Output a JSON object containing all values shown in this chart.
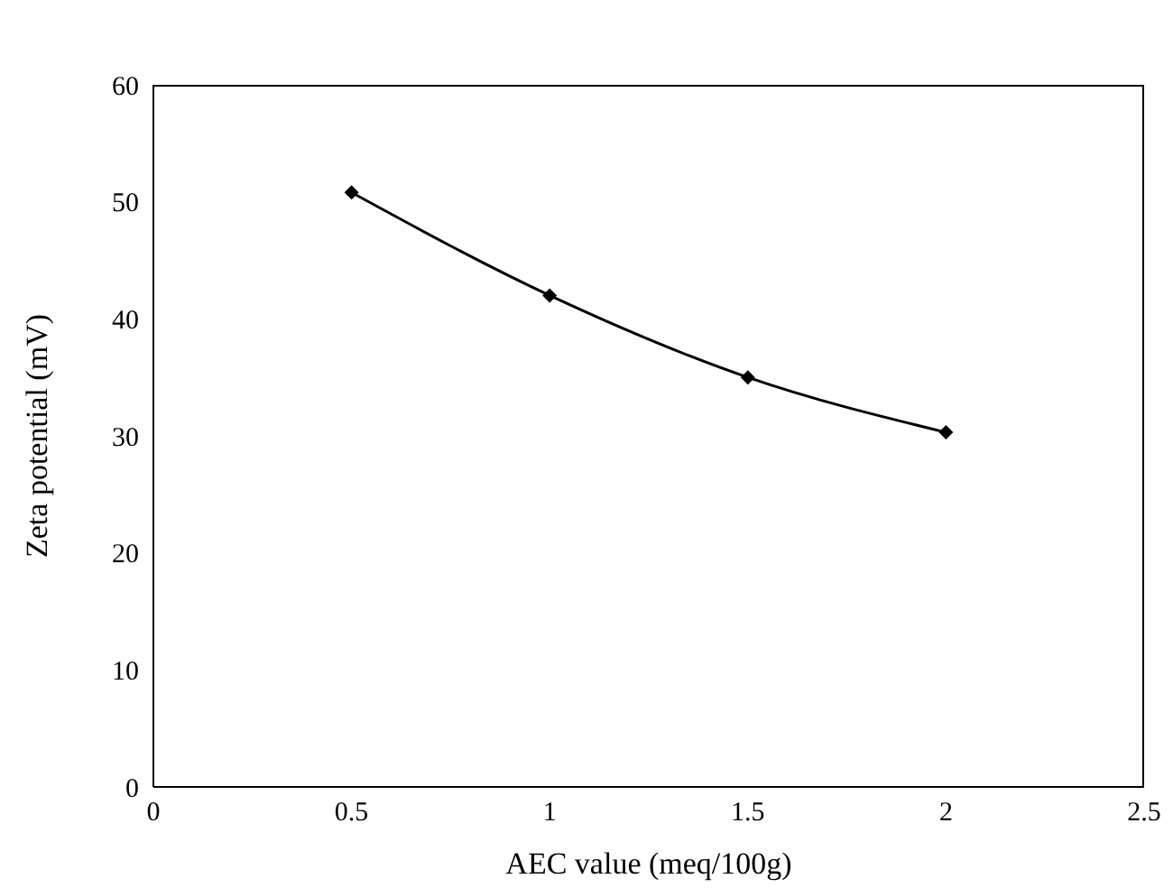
{
  "chart_data": {
    "type": "line",
    "xlabel": "AEC value (meq/100g)",
    "ylabel": "Zeta potential (mV)",
    "x": [
      0.5,
      1,
      1.5,
      2
    ],
    "series": [
      {
        "color": "#000000",
        "values": [
          50.8,
          42,
          35,
          30.3
        ]
      }
    ],
    "xlim": [
      0,
      2.5
    ],
    "xticks": [
      0,
      0.5,
      1,
      1.5,
      2,
      2.5
    ],
    "ylim": [
      0,
      60
    ],
    "yticks": [
      0,
      10,
      20,
      30,
      40,
      50,
      60
    ],
    "marker": "diamond",
    "line_style": "solid",
    "grid": false,
    "legend": false
  }
}
